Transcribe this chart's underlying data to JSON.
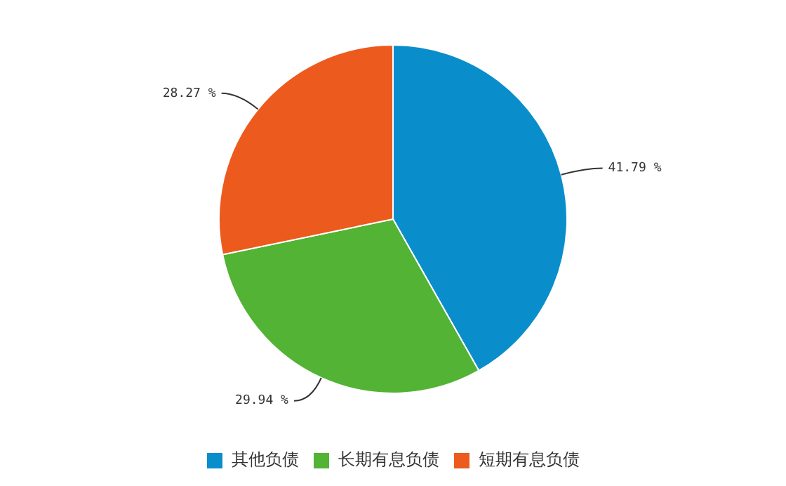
{
  "chart_data": {
    "type": "pie",
    "categories": [
      "其他负债",
      "长期有息负债",
      "短期有息负债"
    ],
    "values": [
      41.79,
      29.94,
      28.27
    ],
    "colors": [
      "#0a8ecb",
      "#52b334",
      "#ec5a1e"
    ],
    "value_labels": [
      "41.79 %",
      "29.94 %",
      "28.27 %"
    ],
    "legend": "bottom"
  }
}
